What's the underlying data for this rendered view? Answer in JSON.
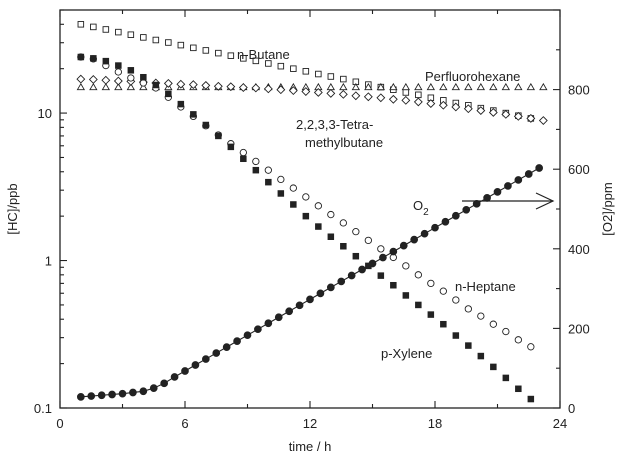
{
  "chart_data": {
    "type": "scatter",
    "title": "",
    "xlabel": "time / h",
    "ylabel_left": "[HC]/ppb",
    "ylabel_right": "[O2]/ppm",
    "x_range": [
      0,
      24
    ],
    "x_ticks": [
      "0",
      "6",
      "12",
      "18",
      "24"
    ],
    "y_left_scale": "log",
    "y_left_range": [
      0.1,
      50
    ],
    "y_left_ticks": [
      "0.1",
      "1",
      "10"
    ],
    "y_right_range": [
      0,
      1000
    ],
    "y_right_ticks": [
      "0",
      "200",
      "400",
      "600",
      "800"
    ],
    "grid": false,
    "legend": "none",
    "annotations": {
      "n_butane": "n-Butane",
      "perfluorohexane": "Perfluorohexane",
      "tetramethylbutane_line1": "2,2,3,3-Tetra-",
      "tetramethylbutane_line2": "methylbutane",
      "o2_base": "O",
      "o2_sub": "2",
      "n_heptane": "n-Heptane",
      "p_xylene": "p-Xylene"
    },
    "series": [
      {
        "label": "n-Butane",
        "axis": "left",
        "marker": "square-open",
        "x": [
          1.0,
          1.6,
          2.2,
          2.8,
          3.4,
          4.0,
          4.6,
          5.2,
          5.8,
          6.4,
          7.0,
          7.6,
          8.2,
          8.8,
          9.4,
          10.0,
          10.6,
          11.2,
          11.8,
          12.4,
          13.0,
          13.6,
          14.2,
          14.8,
          15.4,
          16.0,
          16.6,
          17.2,
          17.8,
          18.4,
          19.0,
          19.6,
          20.2,
          20.8,
          21.4,
          22.0,
          22.6
        ],
        "y": [
          40.0,
          38.4,
          36.9,
          35.4,
          34.0,
          32.6,
          31.3,
          30.1,
          28.9,
          27.7,
          26.6,
          25.5,
          24.5,
          23.5,
          22.6,
          21.7,
          20.8,
          20.0,
          19.2,
          18.4,
          17.7,
          17.0,
          16.3,
          15.6,
          15.0,
          14.4,
          13.8,
          13.3,
          12.7,
          12.2,
          11.7,
          11.3,
          10.8,
          10.4,
          10.0,
          9.6,
          9.2
        ]
      },
      {
        "label": "Perfluorohexane",
        "axis": "left",
        "marker": "triangle-open",
        "x": [
          1.0,
          1.6,
          2.2,
          2.8,
          3.4,
          4.0,
          4.6,
          5.2,
          5.8,
          6.4,
          7.0,
          7.6,
          8.2,
          8.8,
          9.4,
          10.0,
          10.6,
          11.2,
          11.8,
          12.4,
          13.0,
          13.6,
          14.2,
          14.8,
          15.4,
          16.0,
          16.6,
          17.2,
          17.8,
          18.4,
          19.0,
          19.6,
          20.2,
          20.8,
          21.4,
          22.0,
          22.6,
          23.2
        ],
        "y": [
          15.0,
          15.0,
          15.0,
          15.0,
          15.0,
          15.0,
          15.0,
          15.0,
          15.0,
          15.0,
          15.0,
          15.0,
          15.0,
          15.0,
          15.0,
          15.0,
          15.0,
          15.0,
          15.0,
          15.0,
          15.0,
          15.0,
          15.0,
          15.0,
          15.0,
          15.0,
          15.0,
          15.0,
          15.0,
          15.0,
          15.0,
          15.0,
          15.0,
          15.0,
          15.0,
          15.0,
          15.0,
          15.0
        ]
      },
      {
        "label": "2,2,3,3-Tetramethylbutane",
        "axis": "left",
        "marker": "diamond-open",
        "x": [
          1.0,
          1.6,
          2.2,
          2.8,
          3.4,
          4.0,
          4.6,
          5.2,
          5.8,
          6.4,
          7.0,
          7.6,
          8.2,
          8.8,
          9.4,
          10.0,
          10.6,
          11.2,
          11.8,
          12.4,
          13.0,
          13.6,
          14.2,
          14.8,
          15.4,
          16.0,
          16.6,
          17.2,
          17.8,
          18.4,
          19.0,
          19.6,
          20.2,
          20.8,
          21.4,
          22.0,
          22.6,
          23.2
        ],
        "y": [
          17.0,
          16.9,
          16.7,
          16.5,
          16.4,
          16.2,
          16.0,
          15.9,
          15.7,
          15.6,
          15.4,
          15.2,
          15.1,
          14.9,
          14.8,
          14.6,
          14.4,
          14.2,
          14.0,
          13.8,
          13.6,
          13.4,
          13.1,
          12.9,
          12.7,
          12.4,
          12.2,
          11.9,
          11.6,
          11.3,
          11.0,
          10.7,
          10.4,
          10.1,
          9.8,
          9.5,
          9.2,
          8.9
        ]
      },
      {
        "label": "n-Heptane",
        "axis": "left",
        "marker": "circle-open",
        "x": [
          1.0,
          1.6,
          2.2,
          2.8,
          3.4,
          4.0,
          4.6,
          5.2,
          5.8,
          6.4,
          7.0,
          7.6,
          8.2,
          8.8,
          9.4,
          10.0,
          10.6,
          11.2,
          11.8,
          12.4,
          13.0,
          13.6,
          14.2,
          14.8,
          15.4,
          16.0,
          16.6,
          17.2,
          17.8,
          18.4,
          19.0,
          19.6,
          20.2,
          20.8,
          21.4,
          22.0,
          22.6
        ],
        "y": [
          24.0,
          23.3,
          21.0,
          19.0,
          17.3,
          16.0,
          14.8,
          12.8,
          11.0,
          9.5,
          8.2,
          7.1,
          6.2,
          5.4,
          4.7,
          4.1,
          3.55,
          3.1,
          2.7,
          2.35,
          2.05,
          1.8,
          1.57,
          1.37,
          1.2,
          1.05,
          0.92,
          0.8,
          0.7,
          0.62,
          0.54,
          0.47,
          0.42,
          0.37,
          0.33,
          0.29,
          0.26
        ]
      },
      {
        "label": "p-Xylene",
        "axis": "left",
        "marker": "square-filled",
        "x": [
          1.0,
          1.6,
          2.2,
          2.8,
          3.4,
          4.0,
          4.6,
          5.2,
          5.8,
          6.4,
          7.0,
          7.6,
          8.2,
          8.8,
          9.4,
          10.0,
          10.6,
          11.2,
          11.8,
          12.4,
          13.0,
          13.6,
          14.2,
          14.8,
          15.4,
          16.0,
          16.6,
          17.2,
          17.8,
          18.4,
          19.0,
          19.6,
          20.2,
          20.8,
          21.4,
          22.0,
          22.6
        ],
        "y": [
          24.0,
          23.5,
          22.5,
          21.0,
          19.5,
          17.5,
          15.5,
          13.5,
          11.5,
          9.8,
          8.3,
          7.0,
          5.9,
          4.9,
          4.1,
          3.4,
          2.85,
          2.4,
          2.0,
          1.7,
          1.45,
          1.25,
          1.07,
          0.92,
          0.79,
          0.68,
          0.58,
          0.5,
          0.43,
          0.37,
          0.31,
          0.265,
          0.225,
          0.19,
          0.16,
          0.135,
          0.115
        ]
      },
      {
        "label": "O2",
        "axis": "right",
        "marker": "circle-filled",
        "x": [
          1.0,
          1.5,
          2.0,
          2.5,
          3.0,
          3.5,
          4.0,
          4.5,
          5.0,
          5.5,
          6.0,
          6.5,
          7.0,
          7.5,
          8.0,
          8.5,
          9.0,
          9.5,
          10.0,
          10.5,
          11.0,
          11.5,
          12.0,
          12.5,
          13.0,
          13.5,
          14.0,
          14.5,
          15.0,
          15.5,
          16.0,
          16.5,
          17.0,
          17.5,
          18.0,
          18.5,
          19.0,
          19.5,
          20.0,
          20.5,
          21.0,
          21.5,
          22.0,
          22.5,
          23.0
        ],
        "y": [
          28,
          30,
          32,
          34,
          36,
          39,
          42,
          50,
          62,
          78,
          93,
          108,
          123,
          138,
          153,
          168,
          183,
          198,
          213,
          228,
          243,
          258,
          273,
          288,
          303,
          318,
          333,
          348,
          363,
          378,
          393,
          408,
          423,
          438,
          453,
          468,
          483,
          498,
          513,
          528,
          543,
          558,
          573,
          588,
          603
        ]
      }
    ]
  }
}
